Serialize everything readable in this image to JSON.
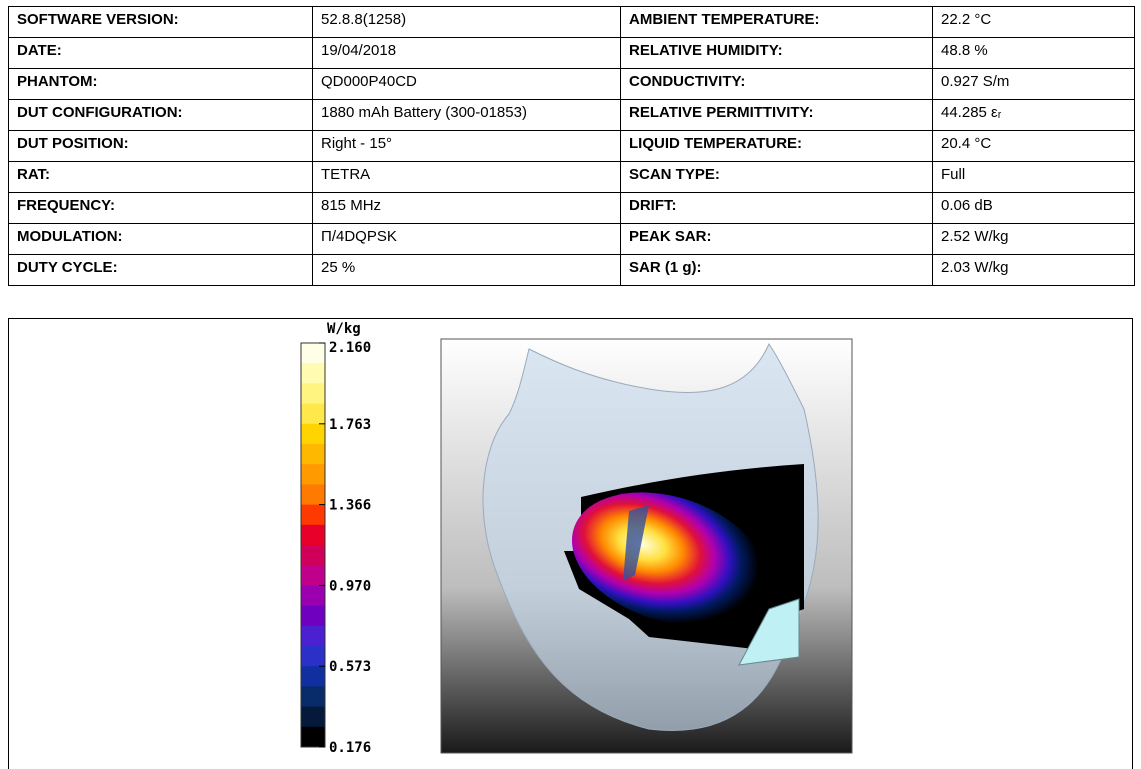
{
  "table": {
    "rows": [
      [
        "SOFTWARE VERSION:",
        "52.8.8(1258)",
        "AMBIENT TEMPERATURE:",
        "22.2 °C"
      ],
      [
        "DATE:",
        "19/04/2018",
        "RELATIVE HUMIDITY:",
        "48.8 %"
      ],
      [
        "PHANTOM:",
        "QD000P40CD",
        "CONDUCTIVITY:",
        "0.927 S/m"
      ],
      [
        "DUT CONFIGURATION:",
        "1880 mAh Battery (300-01853)",
        "RELATIVE PERMITTIVITY:",
        "44.285 εᵣ"
      ],
      [
        "DUT POSITION:",
        "Right - 15°",
        "LIQUID TEMPERATURE:",
        "20.4 °C"
      ],
      [
        "RAT:",
        "TETRA",
        "SCAN TYPE:",
        "Full"
      ],
      [
        "FREQUENCY:",
        "815 MHz",
        "DRIFT:",
        "0.06 dB"
      ],
      [
        "MODULATION:",
        "Π/4DQPSK",
        "PEAK SAR:",
        "2.52 W/kg"
      ],
      [
        "DUTY CYCLE:",
        "25 %",
        "SAR (1 g):",
        "2.03 W/kg"
      ]
    ]
  },
  "colorbar": {
    "unit": "W/kg",
    "labels": [
      "2.160",
      "1.763",
      "1.366",
      "0.970",
      "0.573",
      "0.176"
    ]
  }
}
